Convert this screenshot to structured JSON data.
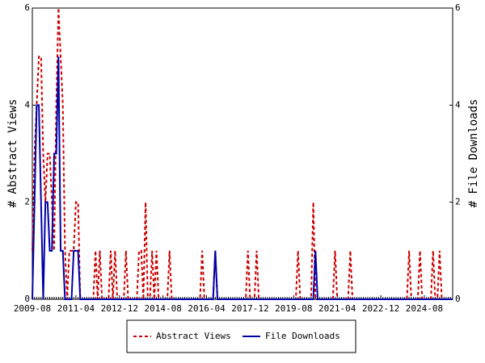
{
  "chart_data": {
    "type": "line",
    "y_label": "# Abstract Views",
    "y2_label": "# File Downloads",
    "categories": [
      "2009-08",
      null,
      null,
      null,
      null,
      null,
      null,
      null,
      null,
      null,
      null,
      null,
      null,
      null,
      null,
      null,
      null,
      null,
      null,
      null,
      "2011-04",
      null,
      null,
      null,
      null,
      null,
      null,
      null,
      null,
      null,
      null,
      null,
      null,
      null,
      null,
      null,
      null,
      null,
      null,
      null,
      "2012-12",
      null,
      null,
      null,
      null,
      null,
      null,
      null,
      null,
      null,
      null,
      null,
      null,
      null,
      null,
      null,
      null,
      null,
      null,
      null,
      "2014-08",
      null,
      null,
      null,
      null,
      null,
      null,
      null,
      null,
      null,
      null,
      null,
      null,
      null,
      null,
      null,
      null,
      null,
      null,
      null,
      "2016-04",
      null,
      null,
      null,
      null,
      null,
      null,
      null,
      null,
      null,
      null,
      null,
      null,
      null,
      null,
      null,
      null,
      null,
      null,
      null,
      "2017-12",
      null,
      null,
      null,
      null,
      null,
      null,
      null,
      null,
      null,
      null,
      null,
      null,
      null,
      null,
      null,
      null,
      null,
      null,
      null,
      "2019-08",
      null,
      null,
      null,
      null,
      null,
      null,
      null,
      null,
      null,
      null,
      null,
      null,
      null,
      null,
      null,
      null,
      null,
      null,
      null,
      "2021-04",
      null,
      null,
      null,
      null,
      null,
      null,
      null,
      null,
      null,
      null,
      null,
      null,
      null,
      null,
      null,
      null,
      null,
      null,
      null,
      "2022-12",
      null,
      null,
      null,
      null,
      null,
      null,
      null,
      null,
      null,
      null,
      null,
      null,
      null,
      null,
      null,
      null,
      null,
      null,
      null,
      "2024-08",
      null,
      null,
      null,
      null,
      null,
      null,
      null,
      null,
      null,
      null,
      null,
      null,
      null
    ],
    "series": [
      {
        "name": "Abstract Views",
        "color": "#cc0000",
        "dash": true,
        "values": [
          1,
          3,
          4,
          5,
          5,
          3,
          2,
          3,
          3,
          2,
          1,
          4,
          6,
          5,
          4,
          1,
          0,
          1,
          1,
          1,
          2,
          2,
          0,
          0,
          0,
          0,
          0,
          0,
          0,
          1,
          0,
          1,
          0,
          0,
          0,
          0,
          1,
          0,
          1,
          0,
          0,
          0,
          0,
          1,
          0,
          0,
          0,
          0,
          0,
          1,
          1,
          0,
          2,
          0,
          0,
          1,
          0,
          1,
          0,
          0,
          0,
          0,
          0,
          1,
          0,
          0,
          0,
          0,
          0,
          0,
          0,
          0,
          0,
          0,
          0,
          0,
          0,
          0,
          1,
          0,
          0,
          0,
          0,
          0,
          1,
          0,
          0,
          0,
          0,
          0,
          0,
          0,
          0,
          0,
          0,
          0,
          0,
          0,
          0,
          1,
          0,
          0,
          0,
          1,
          0,
          0,
          0,
          0,
          0,
          0,
          0,
          0,
          0,
          0,
          0,
          0,
          0,
          0,
          0,
          0,
          0,
          0,
          1,
          0,
          0,
          0,
          0,
          0,
          0,
          2,
          0,
          0,
          0,
          0,
          0,
          0,
          0,
          0,
          0,
          1,
          0,
          0,
          0,
          0,
          0,
          0,
          1,
          0,
          0,
          0,
          0,
          0,
          0,
          0,
          0,
          0,
          0,
          0,
          0,
          0,
          0,
          0,
          0,
          0,
          0,
          0,
          0,
          0,
          0,
          0,
          0,
          0,
          0,
          1,
          0,
          0,
          0,
          0,
          1,
          0,
          0,
          0,
          0,
          0,
          1,
          0,
          0,
          1,
          0,
          0,
          0,
          0,
          0,
          0
        ]
      },
      {
        "name": "File Downloads",
        "color": "#0000aa",
        "axis": "y2",
        "values": [
          0,
          2,
          4,
          4,
          2,
          0,
          2,
          2,
          1,
          1,
          3,
          3,
          5,
          1,
          1,
          0,
          0,
          0,
          0,
          1,
          1,
          1,
          0,
          0,
          0,
          0,
          0,
          0,
          0,
          0,
          0,
          0,
          0,
          0,
          0,
          0,
          0,
          0,
          0,
          0,
          0,
          0,
          0,
          0,
          0,
          0,
          0,
          0,
          0,
          0,
          0,
          0,
          0,
          0,
          0,
          0,
          0,
          0,
          0,
          0,
          0,
          0,
          0,
          0,
          0,
          0,
          0,
          0,
          0,
          0,
          0,
          0,
          0,
          0,
          0,
          0,
          0,
          0,
          0,
          0,
          0,
          0,
          0,
          0,
          1,
          0,
          0,
          0,
          0,
          0,
          0,
          0,
          0,
          0,
          0,
          0,
          0,
          0,
          0,
          0,
          0,
          0,
          0,
          0,
          0,
          0,
          0,
          0,
          0,
          0,
          0,
          0,
          0,
          0,
          0,
          0,
          0,
          0,
          0,
          0,
          0,
          0,
          0,
          0,
          0,
          0,
          0,
          0,
          0,
          0,
          1,
          0,
          0,
          0,
          0,
          0,
          0,
          0,
          0,
          0,
          0,
          0,
          0,
          0,
          0,
          0,
          0,
          0,
          0,
          0,
          0,
          0,
          0,
          0,
          0,
          0,
          0,
          0,
          0,
          0,
          0,
          0,
          0,
          0,
          0,
          0,
          0,
          0,
          0,
          0,
          0,
          0,
          0,
          0,
          0,
          0,
          0,
          0,
          0,
          0,
          0,
          0,
          0,
          0,
          0,
          0,
          0,
          0,
          0,
          0,
          0,
          0,
          0,
          0
        ]
      }
    ],
    "ylim": [
      0,
      6
    ],
    "yticks": [
      0,
      2,
      4,
      6
    ],
    "y2lim": [
      0,
      6
    ],
    "y2ticks": [
      0,
      2,
      4,
      6
    ],
    "legend": "bottom"
  }
}
